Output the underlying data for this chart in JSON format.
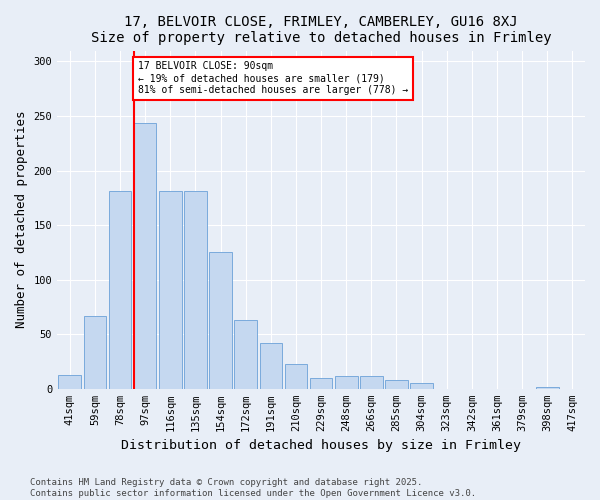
{
  "title1": "17, BELVOIR CLOSE, FRIMLEY, CAMBERLEY, GU16 8XJ",
  "title2": "Size of property relative to detached houses in Frimley",
  "xlabel": "Distribution of detached houses by size in Frimley",
  "ylabel": "Number of detached properties",
  "categories": [
    "41sqm",
    "59sqm",
    "78sqm",
    "97sqm",
    "116sqm",
    "135sqm",
    "154sqm",
    "172sqm",
    "191sqm",
    "210sqm",
    "229sqm",
    "248sqm",
    "266sqm",
    "285sqm",
    "304sqm",
    "323sqm",
    "342sqm",
    "361sqm",
    "379sqm",
    "398sqm",
    "417sqm"
  ],
  "values": [
    13,
    67,
    181,
    244,
    181,
    181,
    125,
    63,
    42,
    23,
    10,
    12,
    12,
    8,
    5,
    0,
    0,
    0,
    0,
    2,
    0
  ],
  "bar_color": "#c5d8f0",
  "bar_edge_color": "#7aaadc",
  "vline_color": "red",
  "annotation_text": "17 BELVOIR CLOSE: 90sqm\n← 19% of detached houses are smaller (179)\n81% of semi-detached houses are larger (778) →",
  "annotation_box_color": "white",
  "annotation_box_edge_color": "red",
  "ylim": [
    0,
    310
  ],
  "yticks": [
    0,
    50,
    100,
    150,
    200,
    250,
    300
  ],
  "bg_color": "#e8eef7",
  "footer": "Contains HM Land Registry data © Crown copyright and database right 2025.\nContains public sector information licensed under the Open Government Licence v3.0.",
  "title_fontsize": 10,
  "axis_label_fontsize": 9,
  "tick_fontsize": 7.5,
  "footer_fontsize": 6.5
}
